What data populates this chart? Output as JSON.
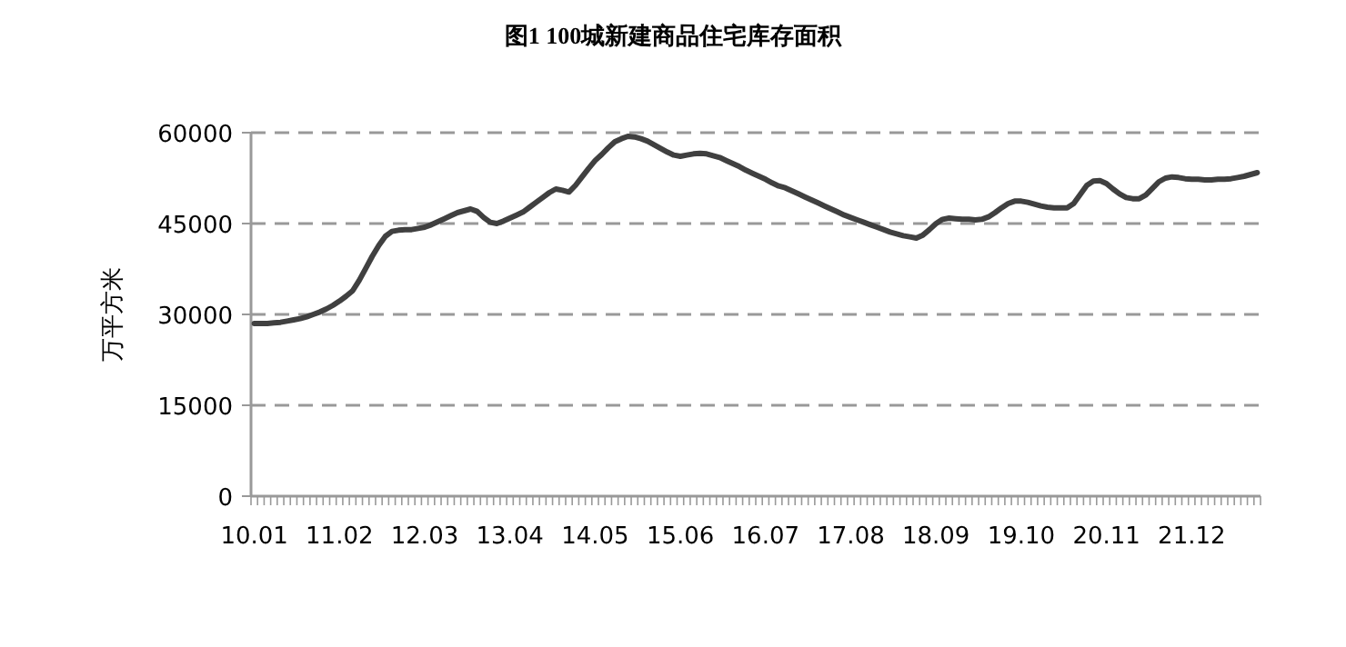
{
  "chart_data": {
    "type": "line",
    "title": "图1 100城新建商品住宅库存面积",
    "ylabel": "万平方米",
    "categories": [
      "10.01",
      null,
      null,
      null,
      null,
      null,
      null,
      null,
      null,
      null,
      null,
      null,
      null,
      "11.02",
      null,
      null,
      null,
      null,
      null,
      null,
      null,
      null,
      null,
      null,
      null,
      null,
      "12.03",
      null,
      null,
      null,
      null,
      null,
      null,
      null,
      null,
      null,
      null,
      null,
      null,
      "13.04",
      null,
      null,
      null,
      null,
      null,
      null,
      null,
      null,
      null,
      null,
      null,
      null,
      "14.05",
      null,
      null,
      null,
      null,
      null,
      null,
      null,
      null,
      null,
      null,
      null,
      null,
      "15.06",
      null,
      null,
      null,
      null,
      null,
      null,
      null,
      null,
      null,
      null,
      null,
      null,
      "16.07",
      null,
      null,
      null,
      null,
      null,
      null,
      null,
      null,
      null,
      null,
      null,
      null,
      "17.08",
      null,
      null,
      null,
      null,
      null,
      null,
      null,
      null,
      null,
      null,
      null,
      null,
      "18.09",
      null,
      null,
      null,
      null,
      null,
      null,
      null,
      null,
      null,
      null,
      null,
      null,
      "19.10",
      null,
      null,
      null,
      null,
      null,
      null,
      null,
      null,
      null,
      null,
      null,
      null,
      "20.11",
      null,
      null,
      null,
      null,
      null,
      null,
      null,
      null,
      null,
      null,
      null,
      null,
      "21.12",
      null,
      null,
      null,
      null,
      null,
      null,
      null,
      null,
      null,
      null
    ],
    "series": [
      {
        "color": "#404040",
        "values": [
          28500,
          28500,
          28500,
          28600,
          28700,
          28900,
          29100,
          29300,
          29600,
          30000,
          30400,
          30900,
          31500,
          32200,
          33000,
          33900,
          35600,
          37600,
          39600,
          41400,
          42900,
          43700,
          43900,
          44000,
          44000,
          44200,
          44400,
          44800,
          45300,
          45800,
          46300,
          46800,
          47100,
          47400,
          47000,
          46000,
          45200,
          45000,
          45400,
          45900,
          46400,
          46900,
          47700,
          48500,
          49300,
          50100,
          50700,
          50500,
          50200,
          51300,
          52700,
          54100,
          55400,
          56400,
          57500,
          58500,
          59000,
          59400,
          59300,
          59000,
          58600,
          58000,
          57400,
          56800,
          56300,
          56100,
          56300,
          56500,
          56600,
          56500,
          56200,
          55900,
          55400,
          54900,
          54400,
          53800,
          53300,
          52800,
          52300,
          51700,
          51200,
          50900,
          50400,
          49900,
          49400,
          48900,
          48400,
          47900,
          47400,
          46900,
          46400,
          46000,
          45600,
          45200,
          44800,
          44400,
          44000,
          43600,
          43300,
          43000,
          42800,
          42600,
          43100,
          44000,
          45000,
          45700,
          45900,
          45800,
          45700,
          45700,
          45600,
          45700,
          46100,
          46800,
          47600,
          48300,
          48700,
          48700,
          48500,
          48200,
          47900,
          47700,
          47600,
          47600,
          47600,
          48300,
          49800,
          51300,
          52000,
          52100,
          51600,
          50700,
          49900,
          49300,
          49100,
          49100,
          49700,
          50800,
          51900,
          52500,
          52700,
          52600,
          52400,
          52300,
          52300,
          52200,
          52200,
          52300,
          52300,
          52400,
          52600,
          52800,
          53100,
          53400
        ]
      }
    ],
    "ylim": [
      0,
      60000
    ],
    "yticks": [
      0,
      15000,
      30000,
      45000,
      60000
    ],
    "grid": "y",
    "line_style": "solid"
  }
}
